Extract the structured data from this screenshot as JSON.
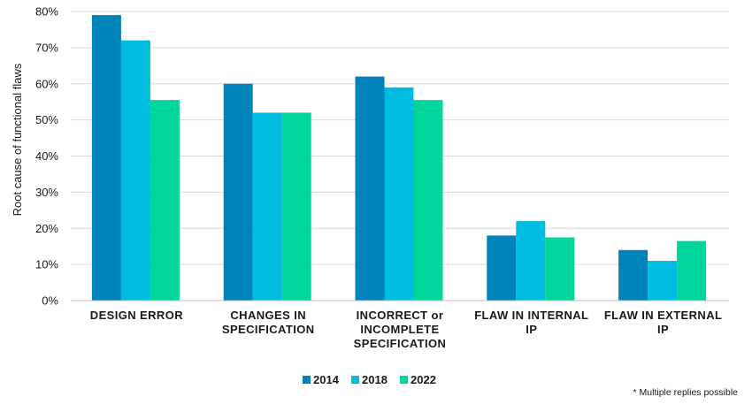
{
  "chart_data": {
    "type": "bar",
    "ylabel": "Root cause of functional flaws",
    "ylim": [
      0,
      80
    ],
    "y_ticks": [
      "0%",
      "10%",
      "20%",
      "30%",
      "40%",
      "50%",
      "60%",
      "70%",
      "80%"
    ],
    "grid": true,
    "legend_position": "bottom-center",
    "categories": [
      [
        "DESIGN ERROR"
      ],
      [
        "CHANGES IN",
        "SPECIFICATION"
      ],
      [
        "INCORRECT or",
        "INCOMPLETE",
        "SPECIFICATION"
      ],
      [
        "FLAW IN INTERNAL",
        "IP"
      ],
      [
        "FLAW IN EXTERNAL",
        "IP"
      ]
    ],
    "series": [
      {
        "name": "2014",
        "color": "#0082BA",
        "values": [
          79,
          60,
          62,
          18,
          14
        ]
      },
      {
        "name": "2018",
        "color": "#00BCE0",
        "values": [
          72,
          52,
          59,
          22,
          11
        ]
      },
      {
        "name": "2022",
        "color": "#00D59C",
        "values": [
          55.5,
          52,
          55.5,
          17.5,
          16.5
        ]
      }
    ],
    "footnote": "* Multiple replies possible"
  }
}
